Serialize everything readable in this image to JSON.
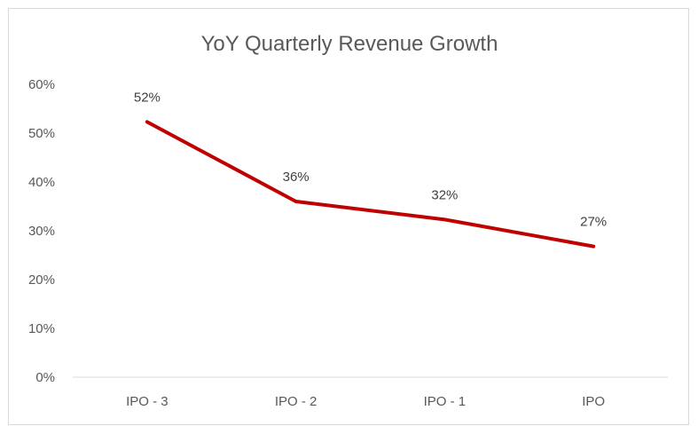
{
  "chart_data": {
    "type": "line",
    "title": "YoY Quarterly Revenue Growth",
    "xlabel": "",
    "ylabel": "",
    "categories": [
      "IPO - 3",
      "IPO - 2",
      "IPO - 1",
      "IPO"
    ],
    "series": [
      {
        "values": [
          52.3,
          36.0,
          32.3,
          26.8
        ],
        "data_labels": [
          "52%",
          "36%",
          "32%",
          "27%"
        ],
        "color": "#c00000"
      }
    ],
    "ylim": [
      0,
      60
    ],
    "yticks": [
      0,
      10,
      20,
      30,
      40,
      50,
      60
    ],
    "ytick_labels": [
      "0%",
      "10%",
      "20%",
      "30%",
      "40%",
      "50%",
      "60%"
    ],
    "grid": false,
    "legend": "none"
  }
}
